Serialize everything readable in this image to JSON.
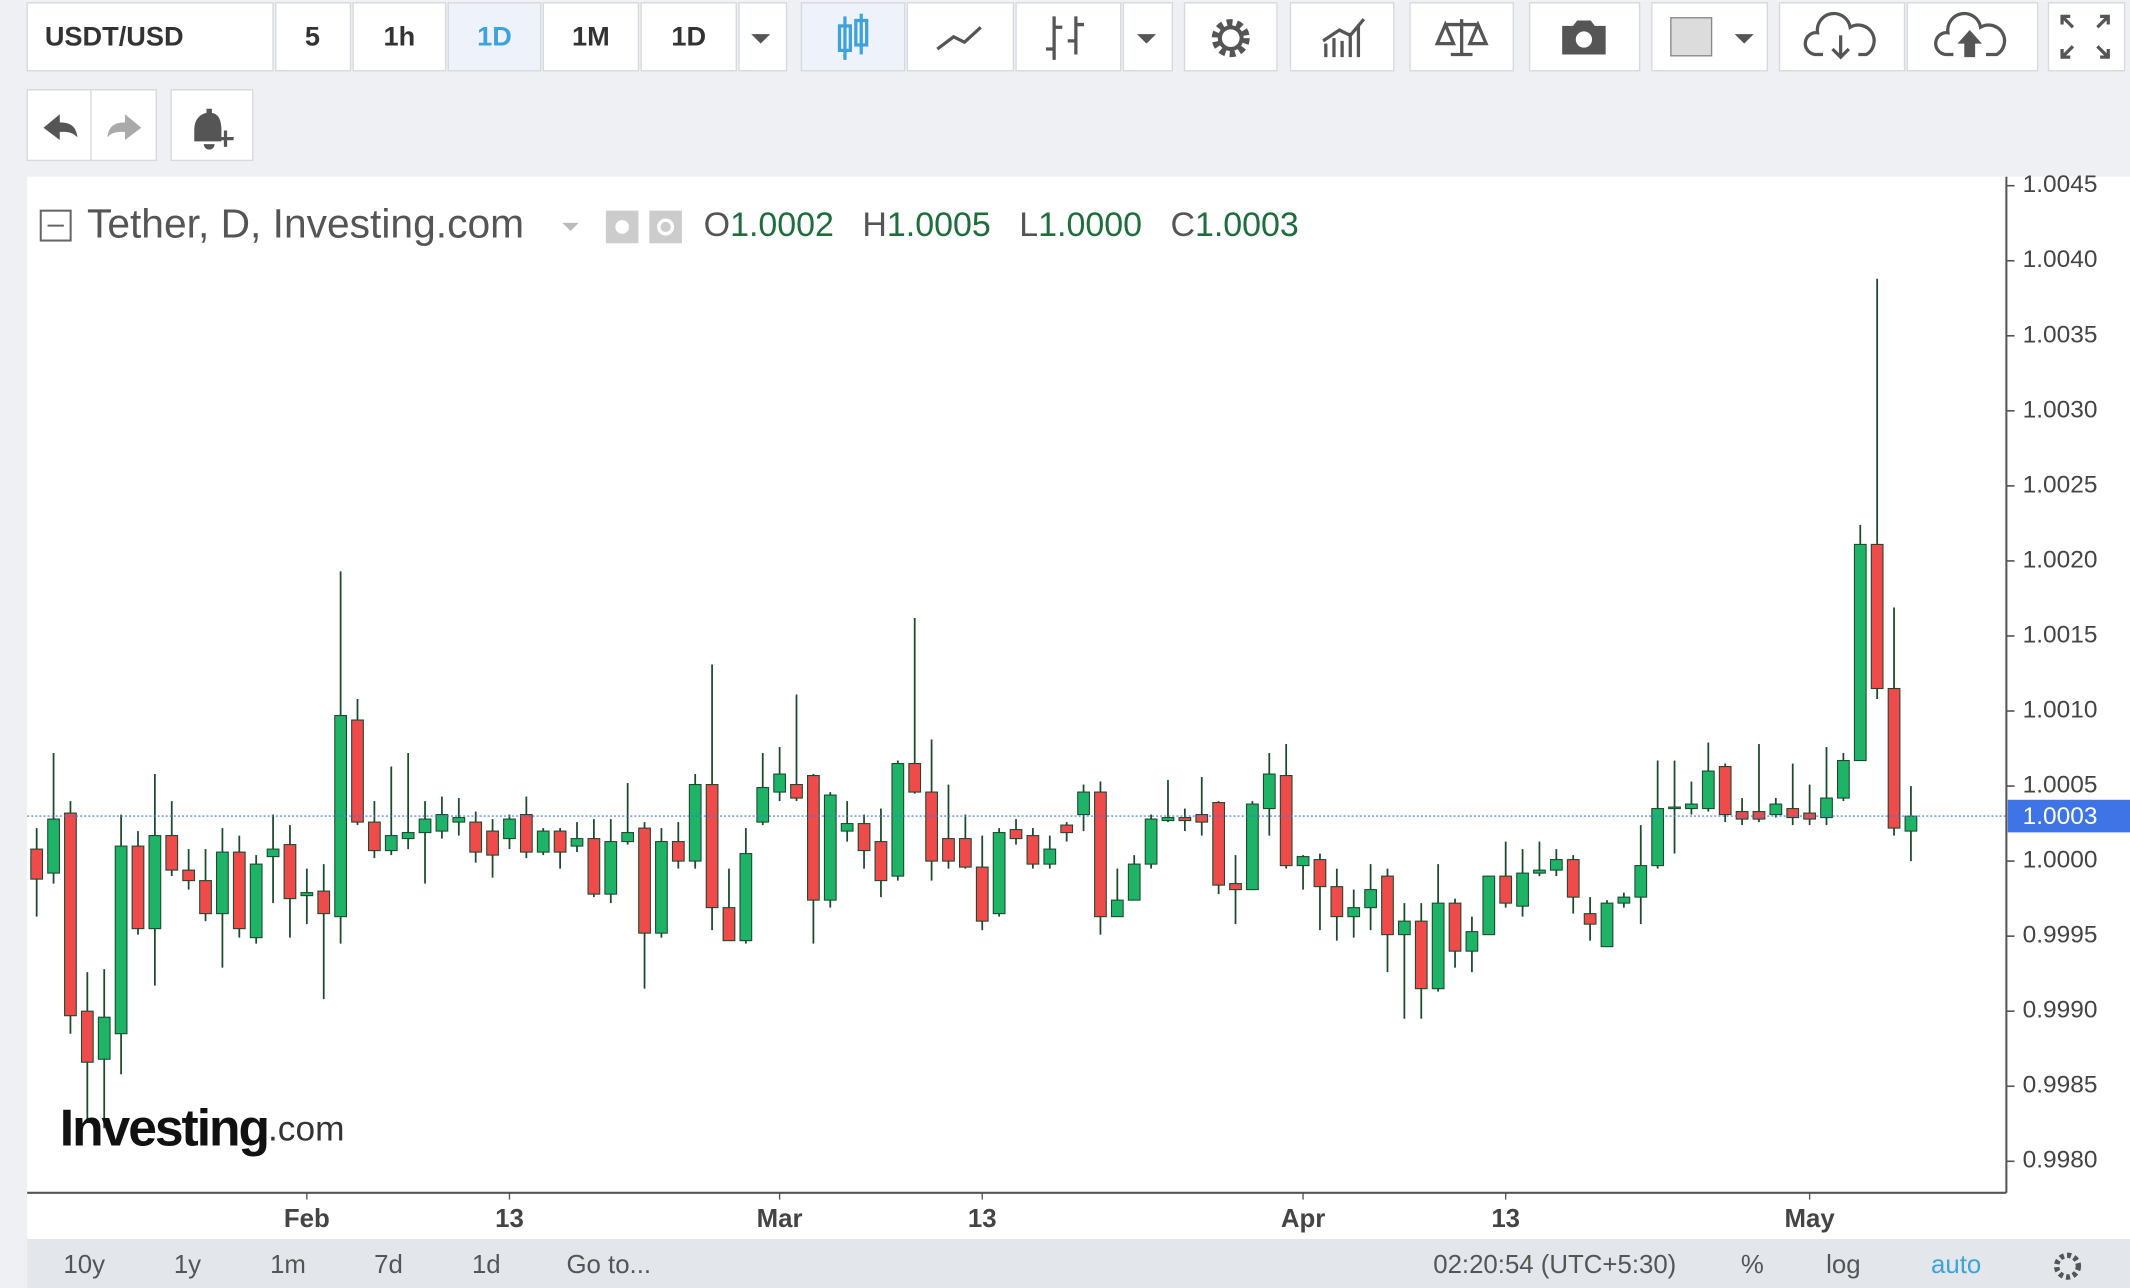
{
  "toolbar": {
    "symbol": "USDT/USD",
    "intervals": [
      "5",
      "1h",
      "1D",
      "1M",
      "1D"
    ]
  },
  "bottom_bar": {
    "ranges": [
      "10y",
      "1y",
      "1m",
      "7d",
      "1d"
    ],
    "goto": "Go to...",
    "clock": "02:20:54 (UTC+5:30)",
    "percent": "%",
    "log": "log",
    "auto": "auto"
  },
  "watermark": [
    "Investing",
    ".com"
  ],
  "chart_data": {
    "type": "candlestick",
    "title": "Tether, D, Investing.com",
    "readout": [
      {
        "label": "O",
        "value": "1.0002"
      },
      {
        "label": "H",
        "value": "1.0005"
      },
      {
        "label": "L",
        "value": "1.0000"
      },
      {
        "label": "C",
        "value": "1.0003"
      }
    ],
    "categories": [
      null,
      null,
      null,
      null,
      null,
      null,
      null,
      null,
      null,
      null,
      null,
      null,
      null,
      null,
      null,
      null,
      "Feb",
      null,
      null,
      null,
      null,
      null,
      null,
      null,
      null,
      null,
      null,
      null,
      "13",
      null,
      null,
      null,
      null,
      null,
      null,
      null,
      null,
      null,
      null,
      null,
      null,
      null,
      null,
      null,
      "Mar",
      null,
      null,
      null,
      null,
      null,
      null,
      null,
      null,
      null,
      null,
      null,
      "13",
      null,
      null,
      null,
      null,
      null,
      null,
      null,
      null,
      null,
      null,
      null,
      null,
      null,
      null,
      null,
      null,
      null,
      null,
      "Apr",
      null,
      null,
      null,
      null,
      null,
      null,
      null,
      null,
      null,
      null,
      null,
      "13",
      null,
      null,
      null,
      null,
      null,
      null,
      null,
      null,
      null,
      null,
      null,
      null,
      null,
      null,
      null,
      null,
      null,
      "May",
      null,
      null,
      null,
      null,
      null,
      null
    ],
    "open": [
      1.00008,
      0.99992,
      1.00032,
      0.999,
      0.99868,
      0.99885,
      1.0001,
      0.99955,
      1.00017,
      0.99994,
      0.99987,
      0.99965,
      1.00006,
      0.99949,
      1.00003,
      1.00011,
      0.99977,
      0.9998,
      0.99963,
      1.00094,
      1.00026,
      1.00007,
      1.00015,
      1.00019,
      1.0002,
      1.00026,
      1.00026,
      1.0002,
      1.00015,
      1.00031,
      1.00006,
      1.0002,
      1.0001,
      1.00015,
      0.99978,
      1.00013,
      1.00022,
      0.99952,
      1.00013,
      1,
      1.00051,
      0.99969,
      0.99947,
      1.00026,
      1.00046,
      1.00051,
      1.00057,
      0.99974,
      1.0002,
      1.00025,
      1.00013,
      0.9999,
      1.00065,
      1.00046,
      1.00015,
      1.00015,
      0.99996,
      0.99965,
      1.00021,
      1.00017,
      0.99998,
      1.00024,
      1.00031,
      1.00046,
      0.99963,
      0.99974,
      0.99998,
      1.00027,
      1.00029,
      1.00031,
      1.00039,
      0.99985,
      0.99981,
      1.00035,
      1.00057,
      0.99997,
      1.00001,
      0.99983,
      0.99963,
      0.99969,
      0.9999,
      0.99951,
      0.9996,
      0.99915,
      0.99972,
      0.9994,
      0.99951,
      0.9999,
      0.9997,
      0.99992,
      0.99994,
      1.00001,
      0.99965,
      0.99943,
      0.99972,
      0.99976,
      0.99997,
      1.00035,
      1.00035,
      1.00035,
      1.00063,
      1.00033,
      1.00033,
      1.00031,
      1.00035,
      1.00032,
      1.00029,
      1.00042,
      1.00067,
      1.00211,
      1.00115,
      1.0002
    ],
    "high": [
      1.00022,
      1.00072,
      1.0004,
      0.99926,
      0.99928,
      1.00031,
      1.0002,
      1.00058,
      1.0004,
      1.00008,
      1.00008,
      1.00022,
      1.00017,
      1.00004,
      1.00031,
      1.00024,
      0.99995,
      0.99998,
      1.00193,
      1.00108,
      1.0004,
      1.00063,
      1.00072,
      1.0004,
      1.00043,
      1.00042,
      1.00033,
      1.00028,
      1.00031,
      1.00043,
      1.00022,
      1.00022,
      1.00026,
      1.00028,
      1.00028,
      1.00052,
      1.00026,
      1.00022,
      1.00026,
      1.00058,
      1.00131,
      0.99995,
      1.00022,
      1.00072,
      1.00076,
      1.00111,
      1.00058,
      1.00046,
      1.0004,
      1.00031,
      1.00035,
      1.00067,
      1.00162,
      1.00081,
      1.00051,
      1.00031,
      1.00017,
      1.00022,
      1.00028,
      1.00022,
      1.00017,
      1.00026,
      1.00051,
      1.00053,
      0.99995,
      1.00004,
      1.00031,
      1.00054,
      1.00035,
      1.00056,
      1.0004,
      1.00004,
      1.0004,
      1.00072,
      1.00078,
      1.00004,
      1.00005,
      0.99995,
      0.99981,
      0.99998,
      0.99995,
      0.99972,
      0.99972,
      0.99998,
      0.99975,
      0.99963,
      0.9999,
      1.00013,
      1.00008,
      1.00013,
      1.00008,
      1.00004,
      0.99976,
      0.99974,
      0.99979,
      1.00024,
      1.00067,
      1.00067,
      1.00053,
      1.00079,
      1.00065,
      1.00042,
      1.00078,
      1.00042,
      1.00065,
      1.00051,
      1.00076,
      1.00072,
      1.00224,
      1.00388,
      1.00169,
      1.0005
    ],
    "low": [
      0.99963,
      0.99985,
      0.99885,
      0.99826,
      0.99822,
      0.99858,
      0.99951,
      0.99917,
      0.9999,
      0.99981,
      0.9996,
      0.99929,
      0.99949,
      0.99945,
      0.99972,
      0.99949,
      0.99958,
      0.99908,
      0.99945,
      1.00024,
      1.00002,
      1.00004,
      1.00008,
      0.99985,
      1.00015,
      1.00017,
      0.99999,
      0.99989,
      1.00008,
      1.00002,
      1.00004,
      0.99995,
      1.00006,
      0.99976,
      0.99972,
      1.00011,
      0.99915,
      0.99949,
      0.99995,
      0.99995,
      0.99954,
      0.99947,
      0.99945,
      1.00024,
      1.0004,
      1.0004,
      0.99945,
      0.99969,
      1.00013,
      0.99995,
      0.99976,
      0.99987,
      1.00045,
      0.99987,
      0.99995,
      0.99995,
      0.99954,
      0.99963,
      1.00011,
      0.99995,
      0.99995,
      1.00013,
      1.0002,
      0.99951,
      0.99963,
      0.99974,
      0.99995,
      1.00026,
      1.0002,
      1.00017,
      0.99978,
      0.99958,
      0.99981,
      1.00017,
      0.99995,
      0.99981,
      0.99954,
      0.99947,
      0.99949,
      0.99954,
      0.99926,
      0.99895,
      0.99895,
      0.99913,
      0.99929,
      0.99926,
      0.99951,
      0.99969,
      0.99963,
      0.9999,
      0.9999,
      0.99965,
      0.99947,
      0.99943,
      0.99969,
      0.99958,
      0.99995,
      1.00005,
      1.00031,
      1.00033,
      1.00026,
      1.00024,
      1.00026,
      1.00029,
      1.00024,
      1.00024,
      1.00024,
      1.0004,
      1.00067,
      1.00108,
      1.00017,
      1
    ],
    "close": [
      0.99988,
      1.00028,
      0.99897,
      0.99866,
      0.99896,
      1.0001,
      0.99955,
      1.00017,
      0.99994,
      0.99987,
      0.99965,
      1.00006,
      0.99955,
      0.99998,
      1.00008,
      0.99975,
      0.99979,
      0.99965,
      1.00097,
      1.00026,
      1.00007,
      1.00017,
      1.00019,
      1.00028,
      1.00031,
      1.00029,
      1.00006,
      1.00004,
      1.00028,
      1.00006,
      1.0002,
      1.00006,
      1.00015,
      0.99978,
      1.00013,
      1.00019,
      0.99952,
      1.00013,
      1,
      1.00051,
      0.99969,
      0.99947,
      1.00005,
      1.00049,
      1.00058,
      1.00042,
      0.99974,
      1.00044,
      1.00025,
      1.00007,
      0.99987,
      1.00065,
      1.00046,
      1,
      1,
      0.99996,
      0.9996,
      1.00019,
      1.00015,
      0.99998,
      1.00008,
      1.00019,
      1.00046,
      0.99963,
      0.99974,
      0.99998,
      1.00028,
      1.00029,
      1.00027,
      1.00026,
      0.99984,
      0.99981,
      1.00038,
      1.00058,
      0.99997,
      1.00003,
      0.99983,
      0.99963,
      0.99969,
      0.99981,
      0.99951,
      0.9996,
      0.99915,
      0.99972,
      0.9994,
      0.99953,
      0.9999,
      0.99972,
      0.99992,
      0.99994,
      1.00001,
      0.99976,
      0.99958,
      0.99972,
      0.99976,
      0.99997,
      1.00035,
      1.00036,
      1.00038,
      1.0006,
      1.00031,
      1.00028,
      1.00028,
      1.00038,
      1.00029,
      1.00028,
      1.00042,
      1.00067,
      1.00211,
      1.00115,
      1.00022,
      1.0003
    ],
    "up_color": "#1fb368",
    "down_color": "#ef4b4b",
    "wick_color": "#1b4a2e",
    "last_price": 1.0003,
    "last_price_color": "#3f74e6",
    "ylim": [
      0.99779,
      1.00456
    ],
    "yticks": [
      {
        "value": 0.998,
        "label": "0.9980"
      },
      0.9985,
      {
        "value": 0.999,
        "label": "0.9990"
      },
      0.9995,
      {
        "value": 1,
        "label": "1.0000"
      },
      1.0005,
      {
        "value": 1.001,
        "label": "1.0010"
      },
      1.0015,
      {
        "value": 1.002,
        "label": "1.0020"
      },
      1.0025,
      {
        "value": 1.003,
        "label": "1.0030"
      },
      1.0035,
      {
        "value": 1.004,
        "label": "1.0040"
      },
      1.0045
    ],
    "grid": false
  }
}
